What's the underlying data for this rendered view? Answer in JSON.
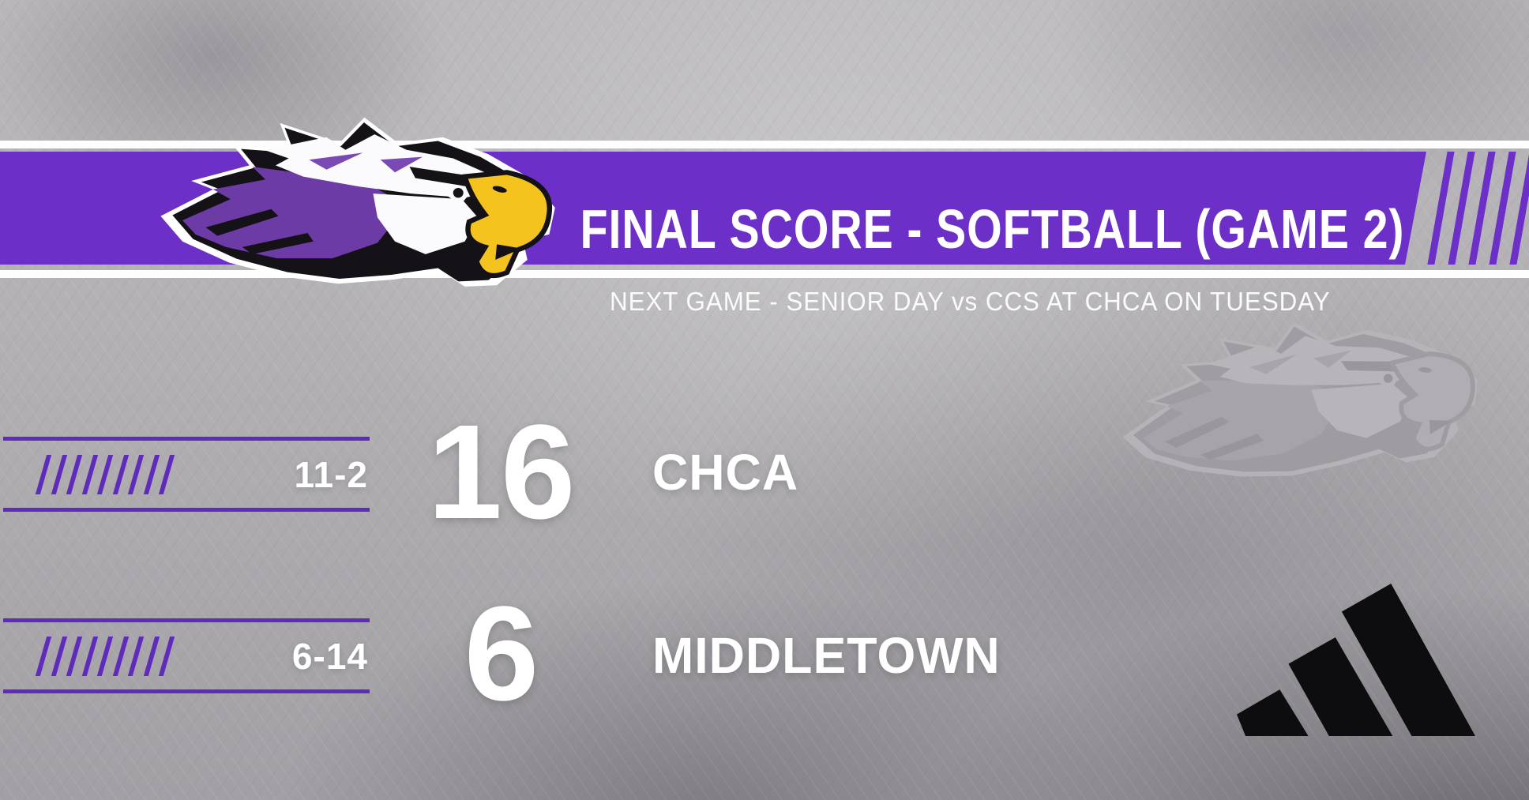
{
  "banner": {
    "title": "FINAL SCORE - SOFTBALL (GAME 2)",
    "subtitle": "NEXT GAME - SENIOR DAY vs CCS AT CHCA ON TUESDAY"
  },
  "scoreboard": {
    "rows": [
      {
        "record": "11-2",
        "score": "16",
        "team": "CHCA"
      },
      {
        "record": "6-14",
        "score": "6",
        "team": "MIDDLETOWN"
      }
    ]
  },
  "branding": {
    "team_logo": "eagle-mascot",
    "watermark_logo": "eagle-mascot-watermark",
    "sponsor_logo": "adidas"
  },
  "colors": {
    "accent_purple": "#6C2FC7",
    "rule_purple": "#5F2BBA",
    "text_white": "#FFFFFF",
    "sponsor_black": "#0D0C0E",
    "background_gray": "#B3B1B4"
  },
  "decor": {
    "slash_count": 9,
    "banner_stripe_count": 6
  }
}
